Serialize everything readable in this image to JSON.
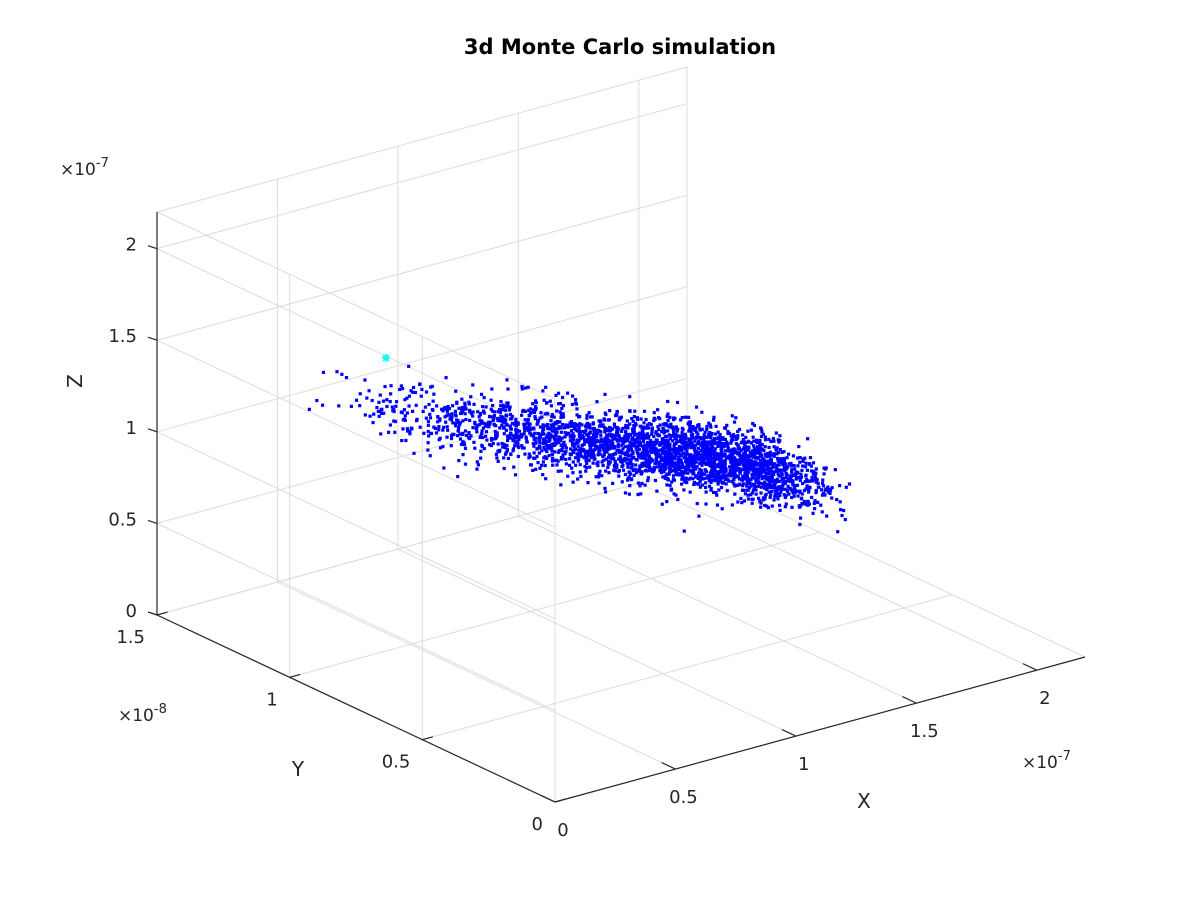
{
  "chart_data": {
    "type": "scatter",
    "title": "3d Monte Carlo simulation",
    "xlabel": "X",
    "ylabel": "Y",
    "zlabel": "Z",
    "xlim": [
      0,
      2.2e-07
    ],
    "ylim": [
      0,
      1.5e-08
    ],
    "zlim": [
      0,
      2.2e-07
    ],
    "xticks": [
      "0",
      "0.5",
      "1",
      "1.5",
      "2"
    ],
    "yticks": [
      "0",
      "0.5",
      "1",
      "1.5"
    ],
    "zticks": [
      "0",
      "0.5",
      "1",
      "1.5",
      "2"
    ],
    "x_exponent": {
      "base": "×10",
      "power": "-7"
    },
    "y_exponent": {
      "base": "×10",
      "power": "-8"
    },
    "z_exponent": {
      "base": "×10",
      "power": "-7"
    },
    "grid": true,
    "view": "3d",
    "colors": {
      "points": "#0000ff",
      "start_marker": "#00ffff",
      "axis": "#262626",
      "grid": "#dcdcdc"
    },
    "series": [
      {
        "marker": "square",
        "color": "#0000ff",
        "cloud": {
          "count": 3000,
          "x_range": [
            1e-08,
            1.95e-07
          ],
          "x_concentration": "increasing toward x≈1.9e-7",
          "y_center": 9e-09,
          "y_spread": 1e-09,
          "z_center_at_x_min": 1.5e-07,
          "z_center_at_x_max": 5e-08,
          "z_spread": 8e-09
        }
      },
      {
        "marker": "star",
        "color": "#00ffff",
        "points": [
          {
            "x": 4e-08,
            "y": 1e-08,
            "z": 1.6e-07
          }
        ]
      }
    ]
  }
}
